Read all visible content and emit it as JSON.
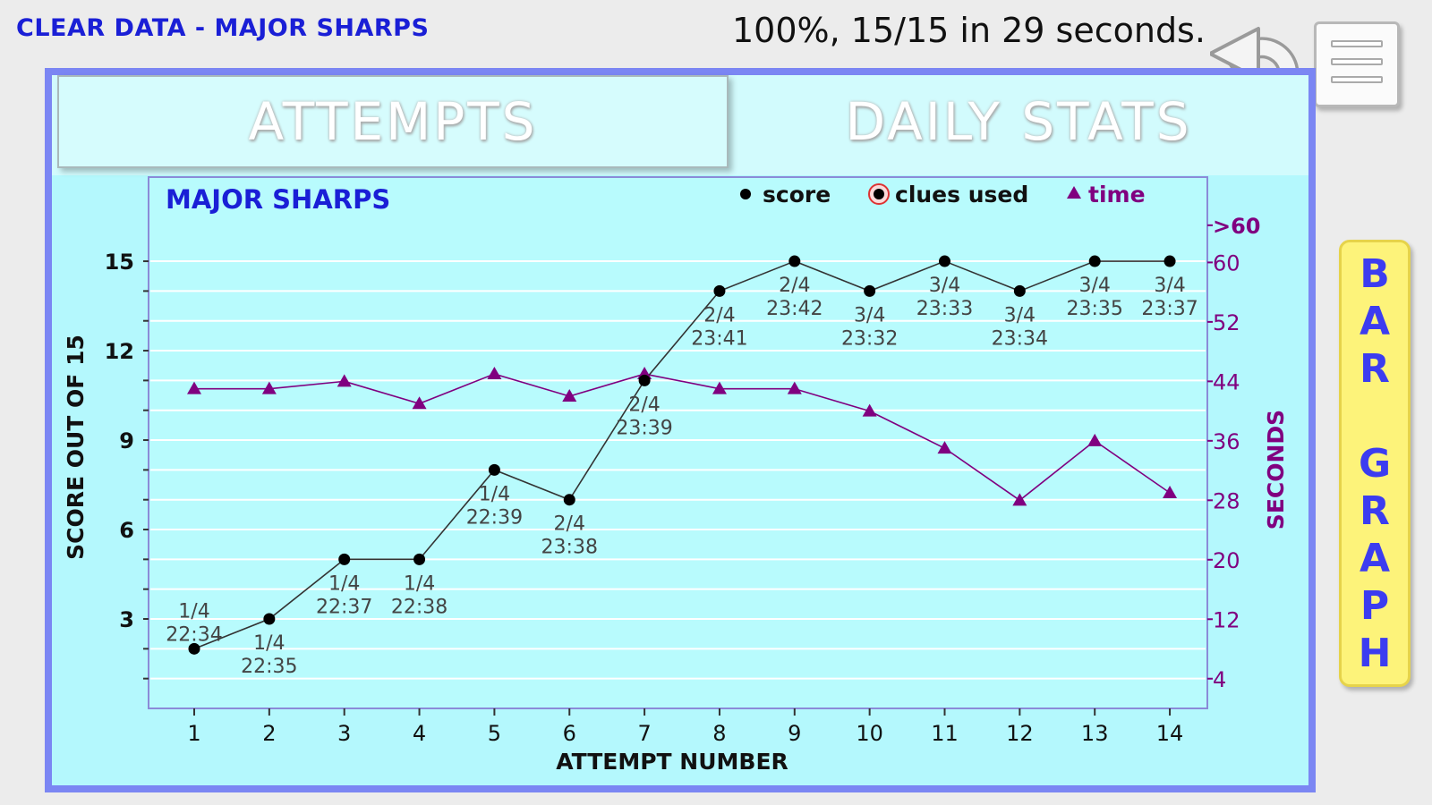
{
  "header": {
    "clear_link": "CLEAR DATA - MAJOR SHARPS",
    "result": "100%, 15/15 in 29 seconds."
  },
  "tabs": [
    {
      "label": "ATTEMPTS"
    },
    {
      "label": "DAILY STATS"
    }
  ],
  "bar_graph_button": {
    "letters": [
      "B",
      "A",
      "R",
      "",
      "G",
      "R",
      "A",
      "P",
      "H"
    ]
  },
  "colors": {
    "score": "#000000",
    "time": "#800080",
    "title": "#1a1fd6",
    "panel_bg": "#b4f8fd",
    "panel_border": "#7b86f3"
  },
  "chart_data": {
    "type": "line",
    "title": "MAJOR SHARPS",
    "xlabel": "ATTEMPT NUMBER",
    "ylabel": "SCORE OUT OF 15",
    "y2label": "SECONDS",
    "legend": [
      "score",
      "clues used",
      "time"
    ],
    "legend_position": "top-right",
    "grid": true,
    "x": [
      1,
      2,
      3,
      4,
      5,
      6,
      7,
      8,
      9,
      10,
      11,
      12,
      13,
      14
    ],
    "ylim": [
      0,
      16.5
    ],
    "yticks": [
      3,
      6,
      9,
      12,
      15
    ],
    "y2lim": [
      0,
      64
    ],
    "y2ticks": [
      "4",
      "12",
      "20",
      "28",
      "36",
      "44",
      "52",
      "60",
      ">60"
    ],
    "series": [
      {
        "name": "score",
        "values": [
          2,
          3,
          5,
          5,
          8,
          7,
          11,
          14,
          15,
          14,
          15,
          14,
          15,
          15
        ]
      },
      {
        "name": "time",
        "values": [
          43,
          43,
          44,
          41,
          45,
          42,
          45,
          43,
          43,
          40,
          35,
          28,
          36,
          29
        ]
      }
    ],
    "annotations": [
      {
        "x": 1,
        "clues": "1/4",
        "time": "22:34"
      },
      {
        "x": 2,
        "clues": "1/4",
        "time": "22:35"
      },
      {
        "x": 3,
        "clues": "1/4",
        "time": "22:37"
      },
      {
        "x": 4,
        "clues": "1/4",
        "time": "22:38"
      },
      {
        "x": 5,
        "clues": "1/4",
        "time": "22:39"
      },
      {
        "x": 6,
        "clues": "2/4",
        "time": "23:38"
      },
      {
        "x": 7,
        "clues": "2/4",
        "time": "23:39"
      },
      {
        "x": 8,
        "clues": "2/4",
        "time": "23:41"
      },
      {
        "x": 9,
        "clues": "2/4",
        "time": "23:42"
      },
      {
        "x": 10,
        "clues": "3/4",
        "time": "23:32"
      },
      {
        "x": 11,
        "clues": "3/4",
        "time": "23:33"
      },
      {
        "x": 12,
        "clues": "3/4",
        "time": "23:34"
      },
      {
        "x": 13,
        "clues": "3/4",
        "time": "23:35"
      },
      {
        "x": 14,
        "clues": "3/4",
        "time": "23:37"
      }
    ]
  }
}
